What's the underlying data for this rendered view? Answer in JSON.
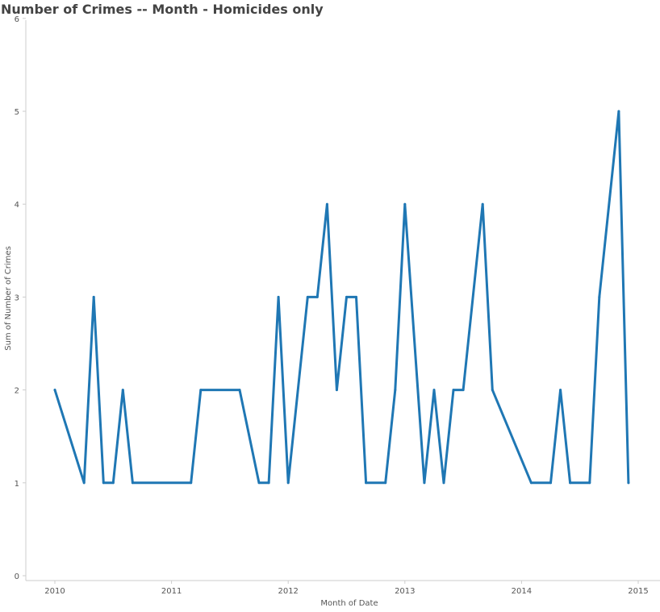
{
  "chart_data": {
    "type": "line",
    "title": "Number of Crimes -- Month - Homicides only",
    "xlabel": "Month of Date",
    "ylabel": "Sum of Number of Crimes",
    "xlim": [
      "2010-01",
      "2015-01"
    ],
    "ylim": [
      0,
      6
    ],
    "x_ticks": [
      "2010",
      "2011",
      "2012",
      "2013",
      "2014",
      "2015"
    ],
    "y_ticks": [
      "0",
      "1",
      "2",
      "3",
      "4",
      "5",
      "6"
    ],
    "grid": false,
    "legend": "none",
    "series": [
      {
        "color": "#1F77B4",
        "points": [
          [
            "2010-01",
            2
          ],
          [
            "2010-04",
            1
          ],
          [
            "2010-05",
            3
          ],
          [
            "2010-06",
            1
          ],
          [
            "2010-07",
            1
          ],
          [
            "2010-08",
            2
          ],
          [
            "2010-09",
            1
          ],
          [
            "2011-03",
            1
          ],
          [
            "2011-04",
            2
          ],
          [
            "2011-08",
            2
          ],
          [
            "2011-10",
            1
          ],
          [
            "2011-11",
            1
          ],
          [
            "2011-12",
            3
          ],
          [
            "2012-01",
            1
          ],
          [
            "2012-03",
            3
          ],
          [
            "2012-04",
            3
          ],
          [
            "2012-05",
            4
          ],
          [
            "2012-06",
            2
          ],
          [
            "2012-07",
            3
          ],
          [
            "2012-08",
            3
          ],
          [
            "2012-09",
            1
          ],
          [
            "2012-11",
            1
          ],
          [
            "2012-12",
            2
          ],
          [
            "2013-01",
            4
          ],
          [
            "2013-03",
            1
          ],
          [
            "2013-04",
            2
          ],
          [
            "2013-05",
            1
          ],
          [
            "2013-06",
            2
          ],
          [
            "2013-07",
            2
          ],
          [
            "2013-09",
            4
          ],
          [
            "2013-10",
            2
          ],
          [
            "2014-02",
            1
          ],
          [
            "2014-04",
            1
          ],
          [
            "2014-05",
            2
          ],
          [
            "2014-06",
            1
          ],
          [
            "2014-08",
            1
          ],
          [
            "2014-09",
            3
          ],
          [
            "2014-11",
            5
          ],
          [
            "2014-12",
            1
          ]
        ]
      }
    ]
  }
}
